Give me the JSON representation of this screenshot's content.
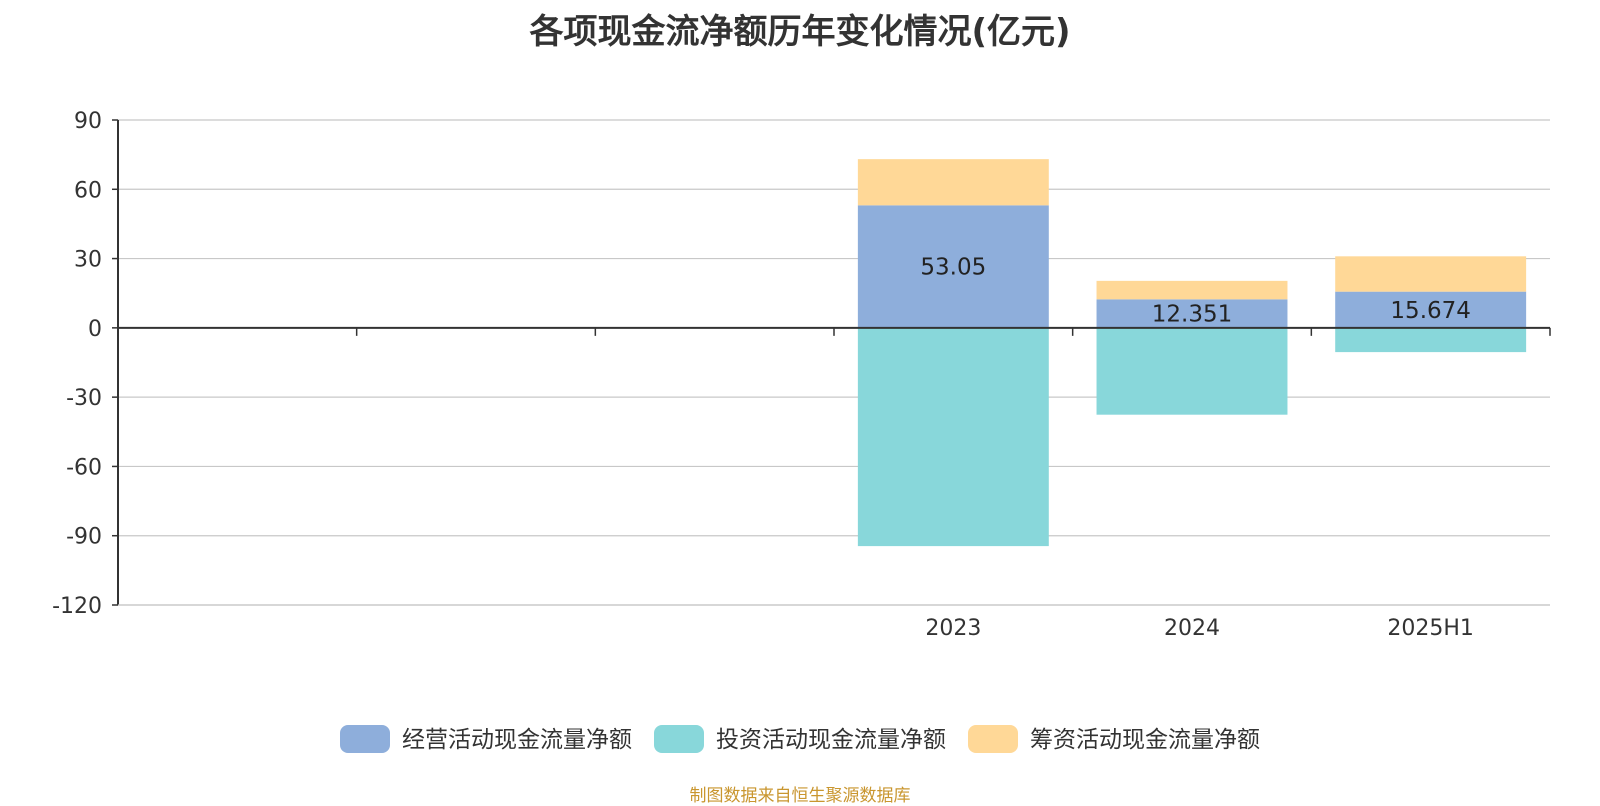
{
  "chart_data": {
    "type": "bar",
    "stacked": true,
    "title": "各项现金流净额历年变化情况(亿元)",
    "categories": [
      "",
      "",
      "",
      "2023",
      "2024",
      "2025H1"
    ],
    "ylim": [
      -120,
      90
    ],
    "yticks": [
      90,
      60,
      30,
      0,
      -30,
      -60,
      -90,
      -120
    ],
    "grid": true,
    "legend_position": "bottom",
    "series": [
      {
        "name": "经营活动现金流量净额",
        "color": "#8eaedb",
        "values": [
          null,
          null,
          null,
          53.05,
          12.351,
          15.674
        ],
        "labels": [
          "",
          "",
          "",
          "53.05",
          "12.351",
          "15.674"
        ]
      },
      {
        "name": "投资活动现金流量净额",
        "color": "#88d7da",
        "values": [
          null,
          null,
          null,
          -94.5,
          -37.6,
          -10.5
        ]
      },
      {
        "name": "筹资活动现金流量净额",
        "color": "#ffd897",
        "values": [
          null,
          null,
          null,
          20.0,
          8.0,
          15.3
        ]
      }
    ],
    "source": "制图数据来自恒生聚源数据库"
  }
}
